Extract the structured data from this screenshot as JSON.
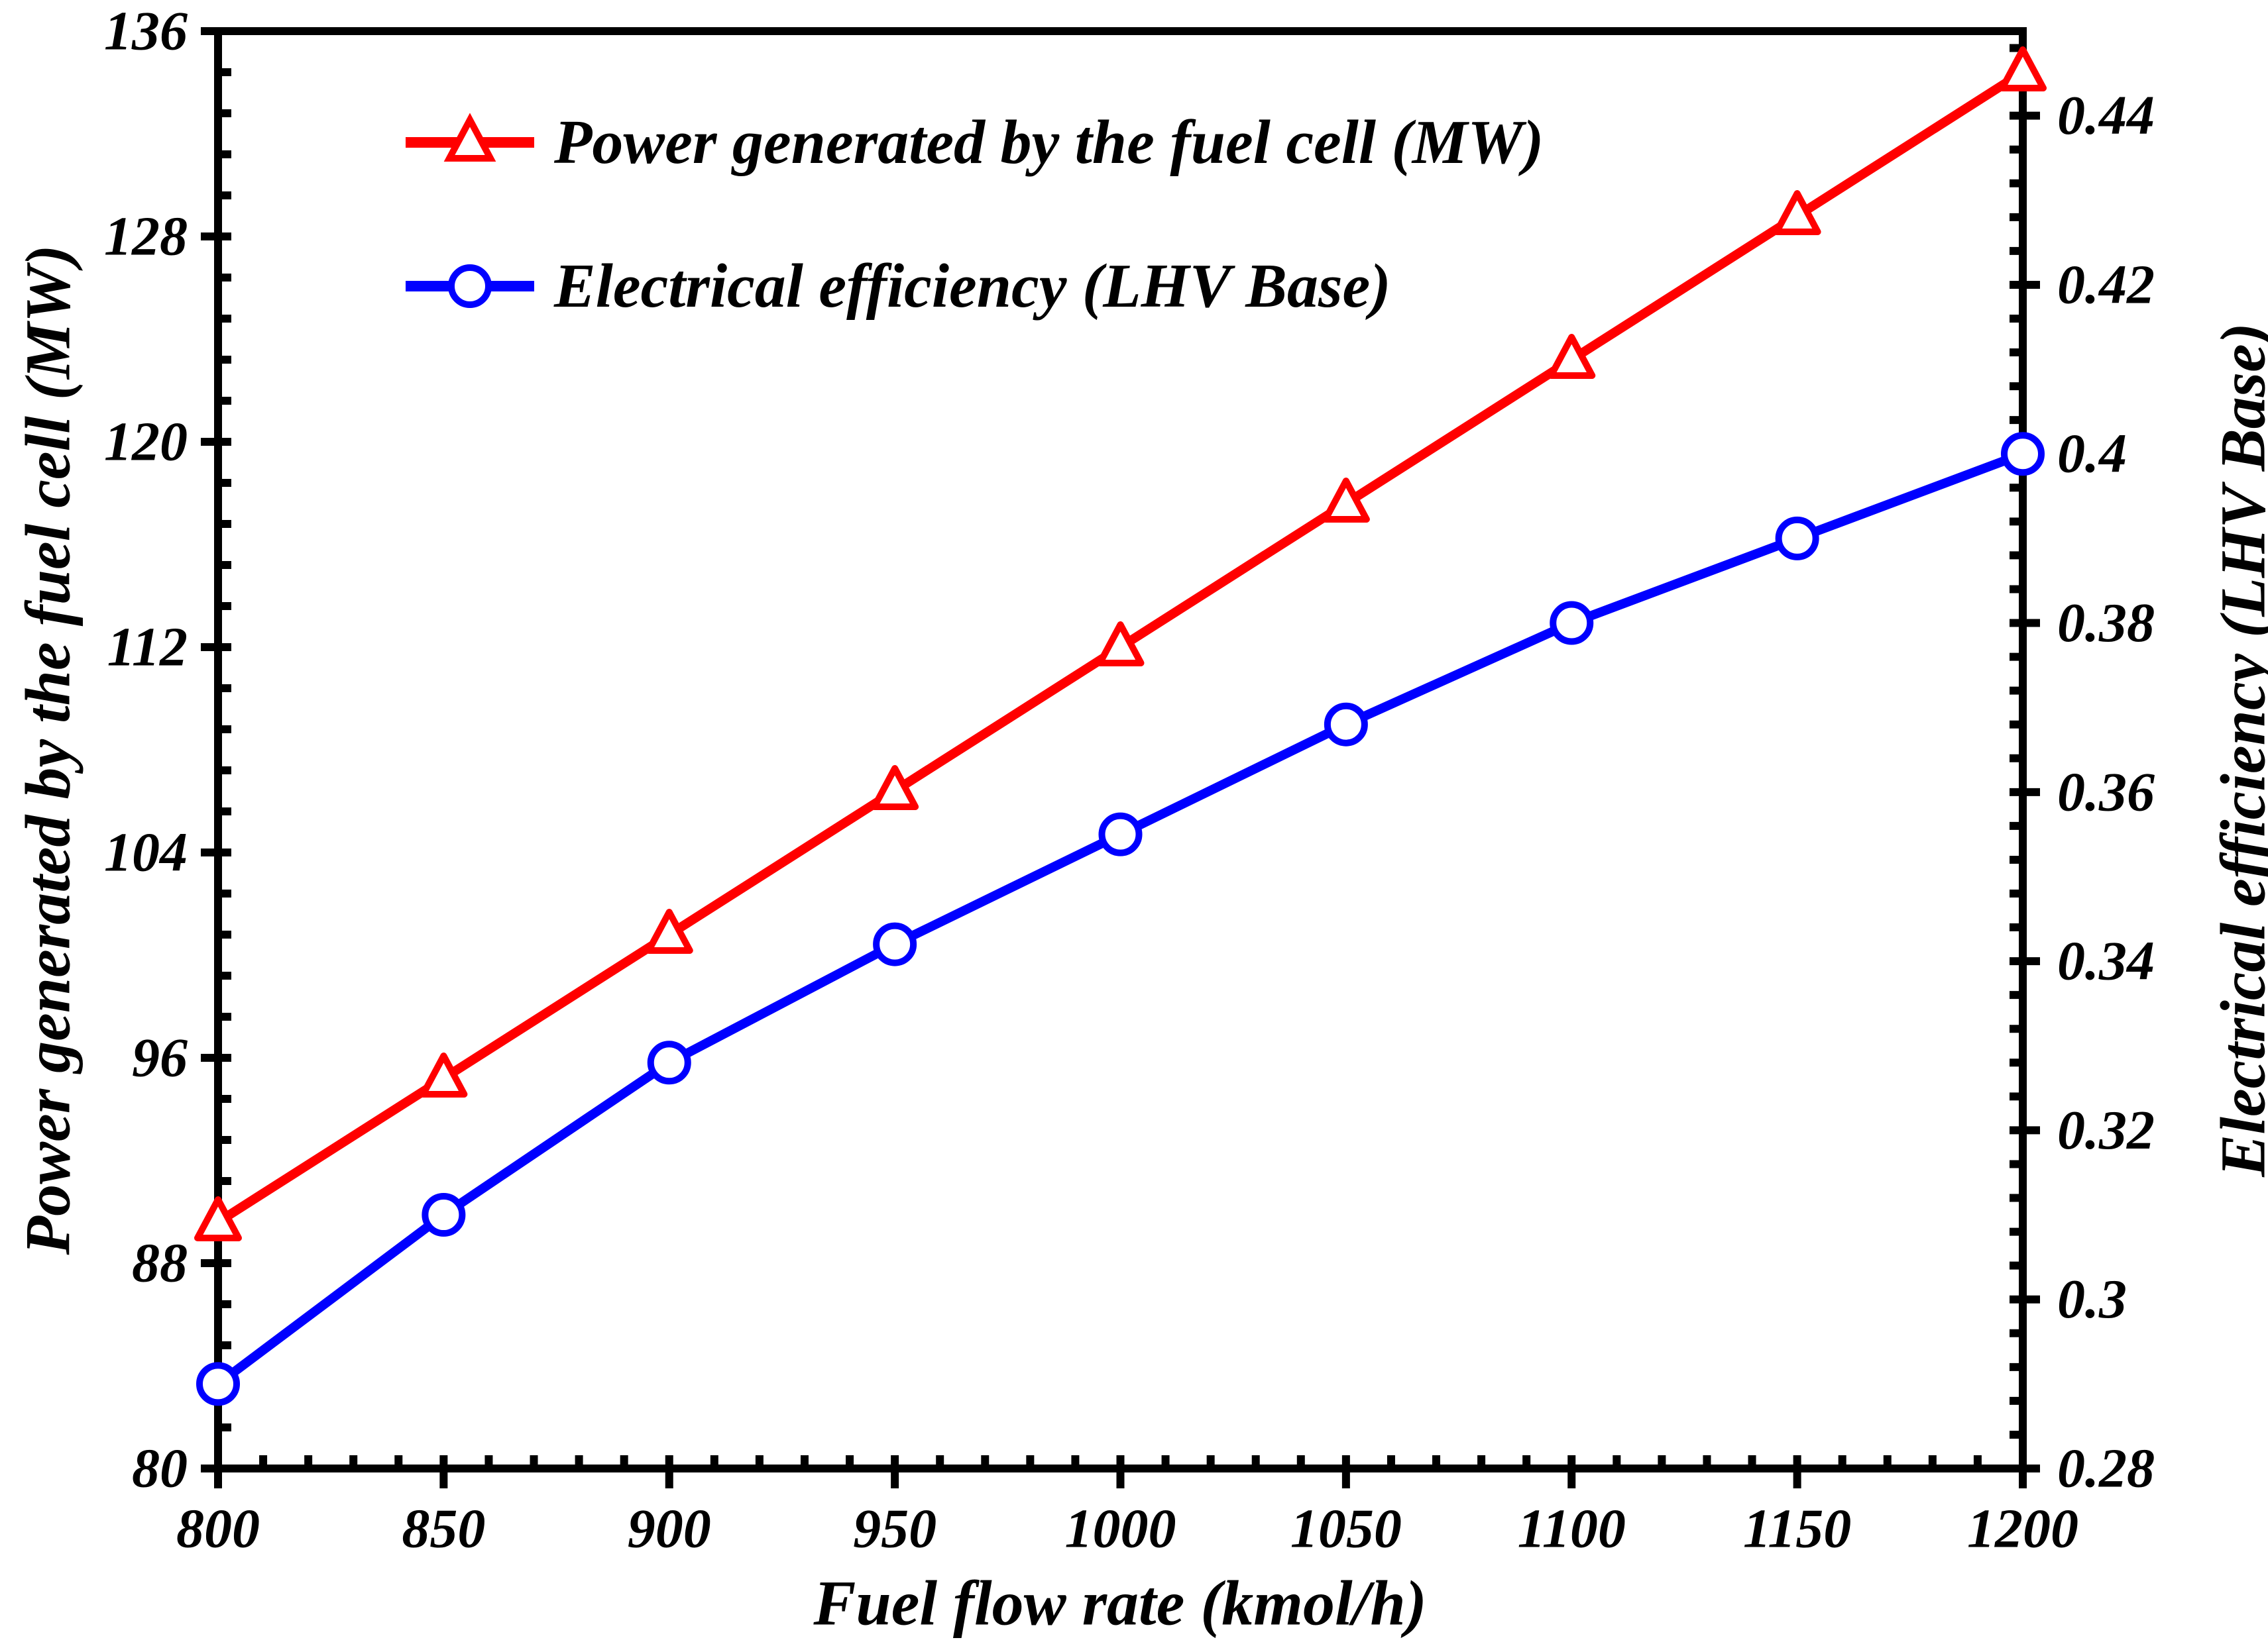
{
  "colors": {
    "series_power": "#ff0000",
    "series_efficiency": "#0000ff",
    "axis": "#000000",
    "background": "#ffffff"
  },
  "chart_data": {
    "type": "line",
    "x": [
      800,
      850,
      900,
      950,
      1000,
      1050,
      1100,
      1150,
      1200
    ],
    "series": [
      {
        "name": "Power generated by the fuel cell (MW)",
        "axis": "left",
        "color": "#ff0000",
        "marker": "triangle",
        "values": [
          89.6,
          95.2,
          100.8,
          106.4,
          112.0,
          117.6,
          123.2,
          128.8,
          134.4
        ]
      },
      {
        "name": "Electrical efficiency (LHV Base)",
        "axis": "right",
        "color": "#0000ff",
        "marker": "circle",
        "values": [
          0.29,
          0.31,
          0.328,
          0.342,
          0.355,
          0.368,
          0.38,
          0.39,
          0.4
        ]
      }
    ],
    "xlabel": "Fuel flow rate (kmol/h)",
    "ylabel_left": "Power generated by the fuel cell (MW)",
    "ylabel_right": "Electrical efficiency (LHV Base)",
    "xlim": [
      800,
      1200
    ],
    "left_ylim": [
      80,
      136
    ],
    "right_ylim": [
      0.28,
      0.45
    ],
    "x_ticks": [
      800,
      850,
      900,
      950,
      1000,
      1050,
      1100,
      1150,
      1200
    ],
    "x_tick_labels": [
      "800",
      "850",
      "900",
      "950",
      "1000",
      "1050",
      "1100",
      "1150",
      "1200"
    ],
    "left_ticks": [
      80,
      88,
      96,
      104,
      112,
      120,
      128,
      136
    ],
    "left_tick_labels": [
      "80",
      "88",
      "96",
      "104",
      "112",
      "120",
      "128",
      "136"
    ],
    "right_ticks": [
      0.28,
      0.3,
      0.32,
      0.34,
      0.36,
      0.38,
      0.4,
      0.42,
      0.44
    ],
    "right_tick_labels": [
      "0.28",
      "0.3",
      "0.32",
      "0.34",
      "0.36",
      "0.38",
      "0.4",
      "0.42",
      "0.44"
    ],
    "x_minor_step": 10,
    "left_minor_step": 1.6,
    "right_minor_step": 0.004,
    "grid": false,
    "legend_position": "top-left-inside"
  }
}
